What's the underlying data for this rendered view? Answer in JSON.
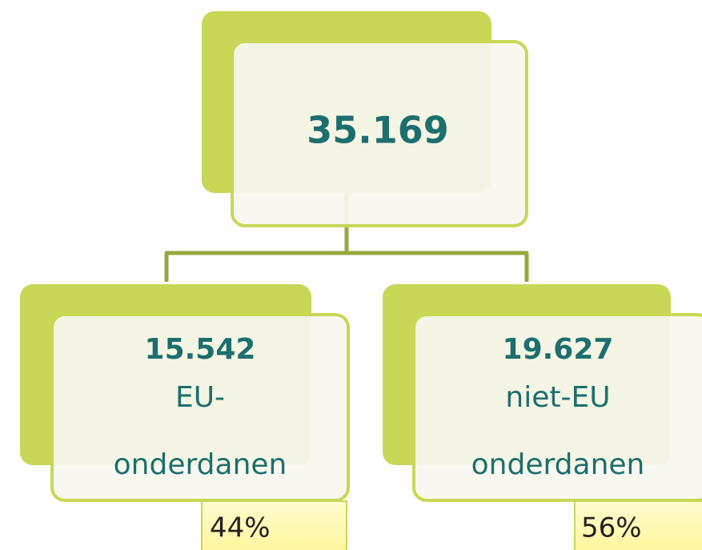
{
  "root": {
    "value": "35.169"
  },
  "children": [
    {
      "value": "15.542",
      "label_lines": [
        "EU-",
        "onderdanen"
      ],
      "share": "44%"
    },
    {
      "value": "19.627",
      "label_lines": [
        "niet-EU",
        "onderdanen"
      ],
      "share": "56%"
    }
  ]
}
